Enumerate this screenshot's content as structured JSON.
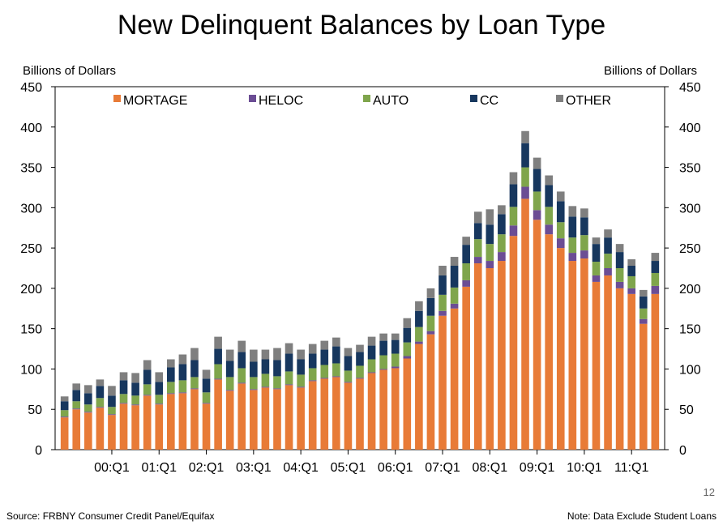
{
  "title": "New Delinquent Balances by Loan Type",
  "page_number": "12",
  "source": "Source: FRBNY Consumer Credit Panel/Equifax",
  "note": "Note:  Data Exclude Student Loans",
  "chart_data": {
    "type": "bar",
    "stacked": true,
    "title": "New Delinquent Balances by Loan Type",
    "ylabel_left": "Billions of Dollars",
    "ylabel_right": "Billions of Dollars",
    "ylim": [
      0,
      450
    ],
    "yticks": [
      0,
      50,
      100,
      150,
      200,
      250,
      300,
      350,
      400,
      450
    ],
    "x_tick_labels": [
      "00:Q1",
      "01:Q1",
      "02:Q1",
      "03:Q1",
      "04:Q1",
      "05:Q1",
      "06:Q1",
      "07:Q1",
      "08:Q1",
      "09:Q1",
      "10:Q1",
      "11:Q1"
    ],
    "x_tick_indices": [
      4,
      8,
      12,
      16,
      20,
      24,
      28,
      32,
      36,
      40,
      44,
      48
    ],
    "legend_position": "top",
    "series": [
      {
        "name": "MORTAGE",
        "color": "#E87B37",
        "values": [
          40,
          50,
          46,
          52,
          43,
          57,
          55,
          67,
          56,
          69,
          70,
          75,
          57,
          87,
          73,
          82,
          74,
          77,
          75,
          80,
          77,
          85,
          88,
          90,
          83,
          88,
          95,
          99,
          101,
          113,
          131,
          143,
          166,
          175,
          202,
          231,
          225,
          234,
          265,
          311,
          285,
          267,
          250,
          234,
          237,
          208,
          216,
          200,
          193,
          156,
          193
        ]
      },
      {
        "name": "HELOC",
        "color": "#6B4D94",
        "values": [
          1,
          1,
          1,
          1,
          1,
          1,
          1,
          1,
          1,
          1,
          1,
          1,
          1,
          1,
          1,
          1,
          1,
          1,
          1,
          1,
          1,
          1,
          1,
          1,
          1,
          1,
          1,
          1,
          2,
          3,
          3,
          4,
          6,
          6,
          8,
          8,
          9,
          11,
          13,
          15,
          12,
          12,
          12,
          10,
          10,
          8,
          9,
          8,
          7,
          6,
          10
        ]
      },
      {
        "name": "AUTO",
        "color": "#7FA54C",
        "values": [
          8,
          9,
          9,
          11,
          9,
          11,
          11,
          13,
          11,
          14,
          15,
          14,
          13,
          18,
          16,
          18,
          15,
          16,
          15,
          16,
          15,
          15,
          16,
          16,
          14,
          15,
          16,
          17,
          16,
          17,
          18,
          19,
          20,
          20,
          21,
          22,
          21,
          22,
          23,
          24,
          23,
          22,
          20,
          19,
          19,
          17,
          18,
          17,
          15,
          13,
          16
        ]
      },
      {
        "name": "CC",
        "color": "#17375E",
        "values": [
          11,
          14,
          14,
          15,
          14,
          17,
          16,
          18,
          16,
          18,
          20,
          21,
          17,
          19,
          20,
          20,
          19,
          18,
          20,
          22,
          19,
          18,
          19,
          21,
          18,
          17,
          17,
          18,
          17,
          18,
          20,
          22,
          24,
          27,
          23,
          20,
          24,
          25,
          28,
          30,
          28,
          27,
          26,
          26,
          22,
          22,
          20,
          20,
          13,
          15,
          15
        ]
      },
      {
        "name": "OTHER",
        "color": "#7F7F7F",
        "values": [
          6,
          8,
          10,
          8,
          12,
          10,
          12,
          12,
          12,
          10,
          12,
          15,
          11,
          15,
          14,
          14,
          15,
          12,
          15,
          13,
          12,
          12,
          11,
          11,
          10,
          9,
          11,
          9,
          8,
          12,
          12,
          12,
          12,
          11,
          10,
          14,
          19,
          11,
          15,
          15,
          14,
          12,
          12,
          13,
          11,
          8,
          10,
          10,
          8,
          8,
          10
        ]
      }
    ]
  }
}
